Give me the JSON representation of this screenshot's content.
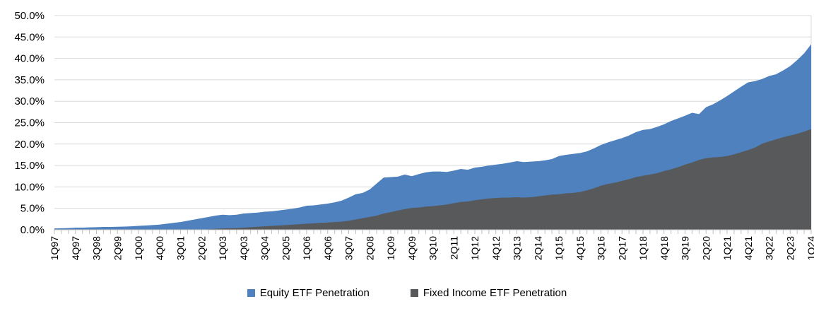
{
  "chart_data": {
    "type": "area",
    "overlap": "overlaid (not stacked), fixed income drawn in front of equity",
    "title": "",
    "xlabel": "",
    "ylabel": "",
    "ylim": [
      0,
      50
    ],
    "y_tick_labels": [
      "0.0%",
      "5.0%",
      "10.0%",
      "15.0%",
      "20.0%",
      "25.0%",
      "30.0%",
      "35.0%",
      "40.0%",
      "45.0%",
      "50.0%"
    ],
    "x_tick_labels": [
      "1Q97",
      "4Q97",
      "3Q98",
      "2Q99",
      "1Q00",
      "4Q00",
      "3Q01",
      "2Q02",
      "1Q03",
      "4Q03",
      "3Q04",
      "2Q05",
      "1Q06",
      "4Q06",
      "3Q07",
      "2Q08",
      "1Q09",
      "4Q09",
      "3Q10",
      "2Q11",
      "1Q12",
      "4Q12",
      "3Q13",
      "2Q14",
      "1Q15",
      "4Q15",
      "3Q16",
      "2Q17",
      "1Q18",
      "4Q18",
      "3Q19",
      "2Q20",
      "1Q21",
      "4Q21",
      "3Q22",
      "2Q23",
      "1Q24"
    ],
    "x_label_every_n_quarters": 3,
    "grid": "horizontal gridlines every 5%",
    "legend_position": "bottom center",
    "x_quarters": [
      "1Q97",
      "2Q97",
      "3Q97",
      "4Q97",
      "1Q98",
      "2Q98",
      "3Q98",
      "4Q98",
      "1Q99",
      "2Q99",
      "3Q99",
      "4Q99",
      "1Q00",
      "2Q00",
      "3Q00",
      "4Q00",
      "1Q01",
      "2Q01",
      "3Q01",
      "4Q01",
      "1Q02",
      "2Q02",
      "3Q02",
      "4Q02",
      "1Q03",
      "2Q03",
      "3Q03",
      "4Q03",
      "1Q04",
      "2Q04",
      "3Q04",
      "4Q04",
      "1Q05",
      "2Q05",
      "3Q05",
      "4Q05",
      "1Q06",
      "2Q06",
      "3Q06",
      "4Q06",
      "1Q07",
      "2Q07",
      "3Q07",
      "4Q07",
      "1Q08",
      "2Q08",
      "3Q08",
      "4Q08",
      "1Q09",
      "2Q09",
      "3Q09",
      "4Q09",
      "1Q10",
      "2Q10",
      "3Q10",
      "4Q10",
      "1Q11",
      "2Q11",
      "3Q11",
      "4Q11",
      "1Q12",
      "2Q12",
      "3Q12",
      "4Q12",
      "1Q13",
      "2Q13",
      "3Q13",
      "4Q13",
      "1Q14",
      "2Q14",
      "3Q14",
      "4Q14",
      "1Q15",
      "2Q15",
      "3Q15",
      "4Q15",
      "1Q16",
      "2Q16",
      "3Q16",
      "4Q16",
      "1Q17",
      "2Q17",
      "3Q17",
      "4Q17",
      "1Q18",
      "2Q18",
      "3Q18",
      "4Q18",
      "1Q19",
      "2Q19",
      "3Q19",
      "4Q19",
      "1Q20",
      "2Q20",
      "3Q20",
      "4Q20",
      "1Q21",
      "2Q21",
      "3Q21",
      "4Q21",
      "1Q22",
      "2Q22",
      "3Q22",
      "4Q22",
      "1Q23",
      "2Q23",
      "3Q23",
      "4Q23",
      "1Q24"
    ],
    "series": [
      {
        "name": "Equity ETF Penetration",
        "color": "#4E81BD",
        "values": [
          0.3,
          0.35,
          0.4,
          0.5,
          0.5,
          0.55,
          0.6,
          0.65,
          0.65,
          0.7,
          0.75,
          0.8,
          0.9,
          1.0,
          1.1,
          1.2,
          1.4,
          1.6,
          1.8,
          2.1,
          2.4,
          2.7,
          3.0,
          3.3,
          3.5,
          3.4,
          3.5,
          3.8,
          3.9,
          4.0,
          4.2,
          4.3,
          4.5,
          4.7,
          4.9,
          5.2,
          5.6,
          5.7,
          5.9,
          6.1,
          6.4,
          6.8,
          7.5,
          8.3,
          8.6,
          9.4,
          10.8,
          12.2,
          12.3,
          12.4,
          12.9,
          12.5,
          13.0,
          13.4,
          13.6,
          13.6,
          13.5,
          13.8,
          14.2,
          14.0,
          14.5,
          14.7,
          15.0,
          15.2,
          15.4,
          15.7,
          16.0,
          15.8,
          15.9,
          16.0,
          16.2,
          16.5,
          17.2,
          17.5,
          17.7,
          17.9,
          18.3,
          19.0,
          19.8,
          20.4,
          20.9,
          21.4,
          22.0,
          22.8,
          23.3,
          23.5,
          24.0,
          24.6,
          25.4,
          26.0,
          26.6,
          27.3,
          27.0,
          28.6,
          29.3,
          30.2,
          31.2,
          32.3,
          33.4,
          34.4,
          34.7,
          35.2,
          35.9,
          36.3,
          37.2,
          38.2,
          39.6,
          41.2,
          43.3
        ]
      },
      {
        "name": "Fixed Income ETF Penetration",
        "color": "#58595B",
        "values": [
          0,
          0,
          0,
          0,
          0,
          0,
          0,
          0,
          0,
          0,
          0,
          0,
          0,
          0,
          0,
          0,
          0,
          0,
          0,
          0,
          0,
          0.05,
          0.1,
          0.2,
          0.3,
          0.35,
          0.4,
          0.5,
          0.6,
          0.7,
          0.8,
          0.9,
          1.0,
          1.1,
          1.2,
          1.3,
          1.4,
          1.5,
          1.6,
          1.7,
          1.8,
          1.9,
          2.1,
          2.4,
          2.7,
          3.0,
          3.3,
          3.8,
          4.1,
          4.5,
          4.8,
          5.1,
          5.2,
          5.4,
          5.5,
          5.7,
          5.9,
          6.2,
          6.5,
          6.6,
          6.9,
          7.1,
          7.3,
          7.4,
          7.5,
          7.5,
          7.6,
          7.5,
          7.6,
          7.8,
          8.0,
          8.2,
          8.3,
          8.5,
          8.6,
          8.8,
          9.2,
          9.7,
          10.3,
          10.7,
          11.0,
          11.4,
          11.8,
          12.3,
          12.6,
          12.9,
          13.2,
          13.7,
          14.1,
          14.6,
          15.2,
          15.7,
          16.3,
          16.7,
          16.9,
          17.0,
          17.2,
          17.6,
          18.1,
          18.6,
          19.2,
          20.1,
          20.6,
          21.1,
          21.6,
          22.0,
          22.4,
          22.9,
          23.5
        ]
      }
    ],
    "colors": {
      "gridline": "#D9D9D9",
      "axis_tick": "#BFBFBF",
      "text": "#000000",
      "background": "#FFFFFF"
    }
  },
  "legend": {
    "equity_label": "Equity ETF Penetration",
    "fixed_income_label": "Fixed Income ETF Penetration"
  }
}
